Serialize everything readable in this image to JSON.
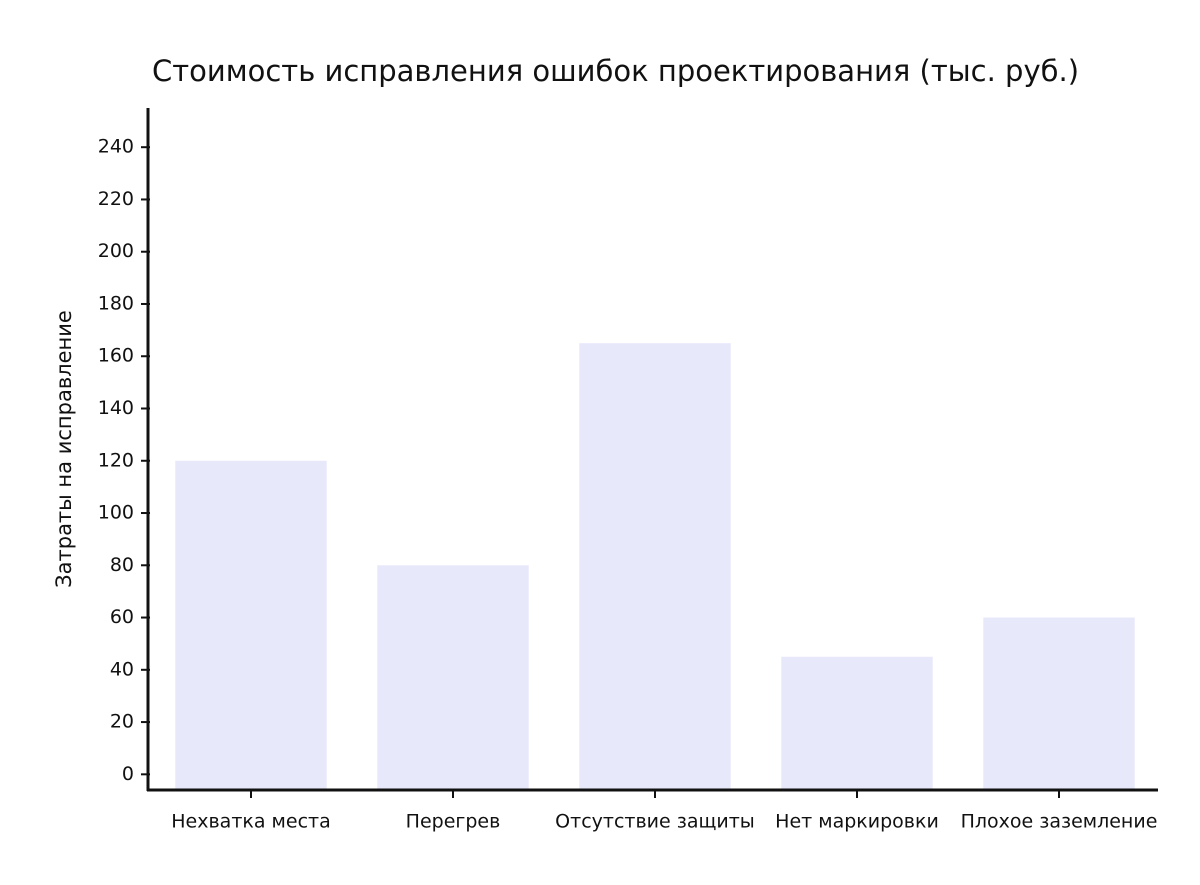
{
  "chart_data": {
    "type": "bar",
    "title": "Стоимость исправления ошибок проектирования (тыс. руб.)",
    "y_label": "Затраты на исправление",
    "categories": [
      "Нехватка места",
      "Перегрев",
      "Отсутствие защиты",
      "Нет маркировки",
      "Плохое заземление"
    ],
    "values": [
      120,
      80,
      165,
      45,
      60
    ],
    "color": "#e8e8fb",
    "ylim": [
      -6,
      255
    ],
    "yticks": [
      0,
      20,
      40,
      60,
      80,
      100,
      120,
      140,
      160,
      180,
      200,
      220,
      240
    ]
  }
}
